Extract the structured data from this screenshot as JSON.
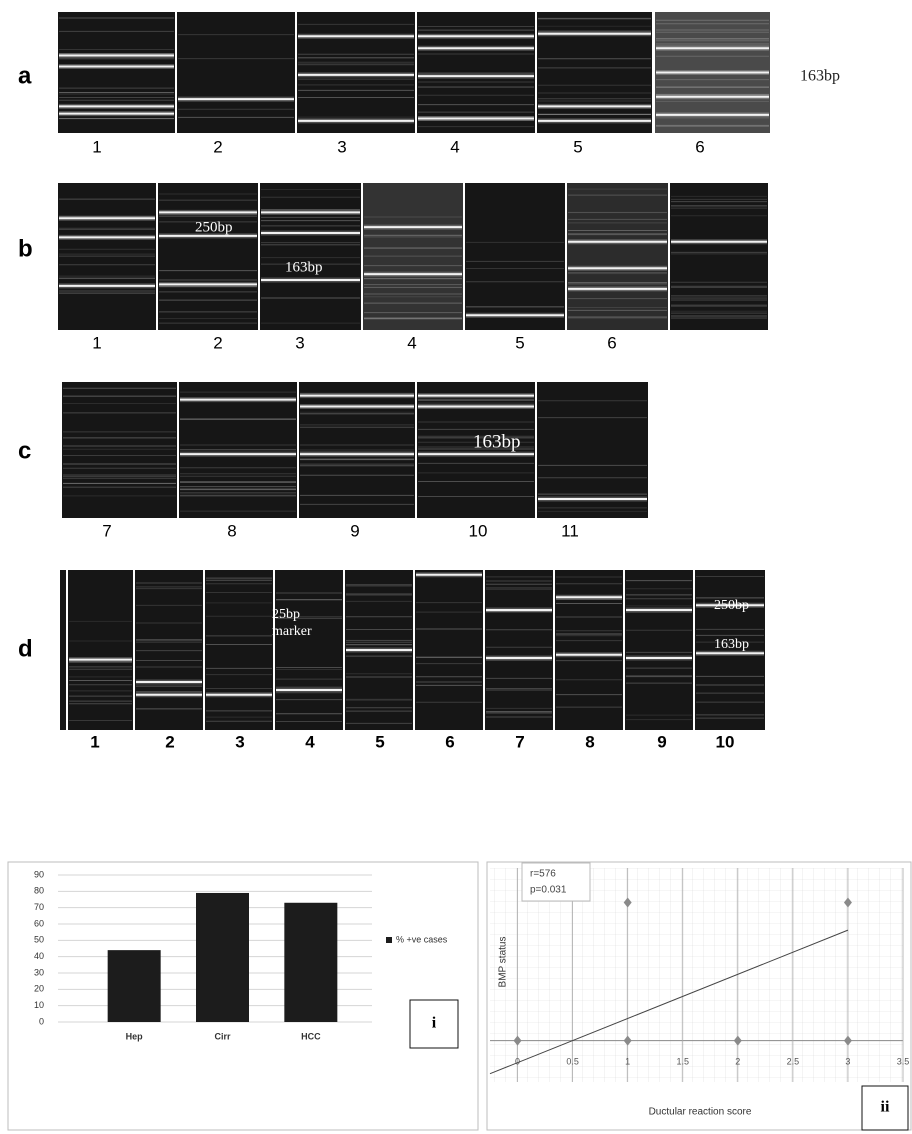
{
  "gels": {
    "a": {
      "label": "a",
      "lanes": [
        "1",
        "2",
        "3",
        "4",
        "5",
        "6"
      ],
      "annotations": [
        "163bp"
      ]
    },
    "b": {
      "label": "b",
      "lanes": [
        "1",
        "2",
        "3",
        "4",
        "5",
        "6"
      ],
      "annotations": [
        "250bp",
        "163bp"
      ]
    },
    "c": {
      "label": "c",
      "lanes": [
        "7",
        "8",
        "9",
        "10",
        "11"
      ],
      "annotations": [
        "163bp"
      ]
    },
    "d": {
      "label": "d",
      "lanes": [
        "1",
        "2",
        "3",
        "4",
        "5",
        "6",
        "7",
        "8",
        "9",
        "10"
      ],
      "annotations": [
        "25bp",
        "marker",
        "250bp",
        "163bp"
      ]
    }
  },
  "chart_data": [
    {
      "type": "bar",
      "categories": [
        "Hep",
        "Cirr",
        "HCC"
      ],
      "series": [
        {
          "name": "% +ve cases",
          "color": "#1c1c1c",
          "values": [
            44,
            79,
            73
          ]
        }
      ],
      "ylim": [
        0,
        90
      ],
      "yticks": [
        0,
        10,
        20,
        30,
        40,
        50,
        60,
        70,
        80,
        90
      ],
      "grid": true,
      "legend": "right",
      "panel_label": "i"
    },
    {
      "type": "scatter",
      "x_label": "Ductular reaction score",
      "y_label": "BMP status",
      "x": [
        0,
        1,
        2,
        3,
        1,
        3
      ],
      "y": [
        0,
        0,
        0,
        0,
        1,
        1
      ],
      "color": "#8a8a8a",
      "xlim": [
        -0.25,
        3.5
      ],
      "xticks": [
        0,
        0.5,
        1,
        1.5,
        2,
        2.5,
        3,
        3.5
      ],
      "ylim": [
        -0.3,
        1.25
      ],
      "grid": true,
      "trendline": {
        "x": [
          -0.25,
          3
        ],
        "y": [
          -0.24,
          0.8
        ]
      },
      "annotations": [
        "r=576",
        "p=0.031"
      ],
      "panel_label": "ii"
    }
  ]
}
